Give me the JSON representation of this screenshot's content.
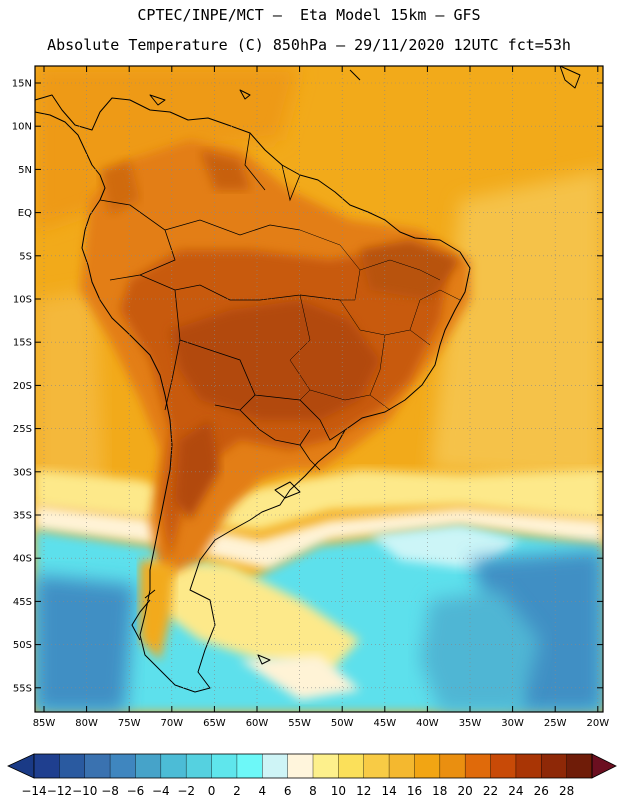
{
  "header": {
    "line1": "CPTEC/INPE/MCT –  Eta Model 15km – GFS",
    "line2": "Absolute Temperature (C) 850hPa – 29/11/2020 12UTC fct=53h"
  },
  "lat_labels": [
    "15N",
    "10N",
    "5N",
    "EQ",
    "5S",
    "10S",
    "15S",
    "20S",
    "25S",
    "30S",
    "35S",
    "40S",
    "45S",
    "50S",
    "55S"
  ],
  "lon_labels": [
    "85W",
    "80W",
    "75W",
    "70W",
    "65W",
    "60W",
    "55W",
    "50W",
    "45W",
    "40W",
    "35W",
    "30W",
    "25W",
    "20W"
  ],
  "colorbar": {
    "labels": [
      "-14",
      "-12",
      "-10",
      "-8",
      "-6",
      "-4",
      "-2",
      "0",
      "2",
      "4",
      "6",
      "8",
      "10",
      "12",
      "14",
      "16",
      "18",
      "20",
      "22",
      "24",
      "26",
      "28"
    ],
    "colors": [
      "#1f3f8f",
      "#2a5aa0",
      "#3a72b0",
      "#3f86bf",
      "#46a3c9",
      "#4cbcd6",
      "#55d1e0",
      "#5fe6ec",
      "#6df8f8",
      "#cef4f6",
      "#fff5dc",
      "#fdf08c",
      "#fbe05a",
      "#f8cb45",
      "#f4b82f",
      "#f2a513",
      "#ea8f10",
      "#e06a0a",
      "#c84a07",
      "#a93505",
      "#8e2807",
      "#6f1c08"
    ],
    "under_color": "#1a3a86",
    "over_color": "#6b0f20"
  },
  "colors": {
    "ocean_warm": "#f2aa1a",
    "land_hot": "#c85a10",
    "cold": "#5de0ec",
    "very_cold": "#3f8fc4"
  }
}
